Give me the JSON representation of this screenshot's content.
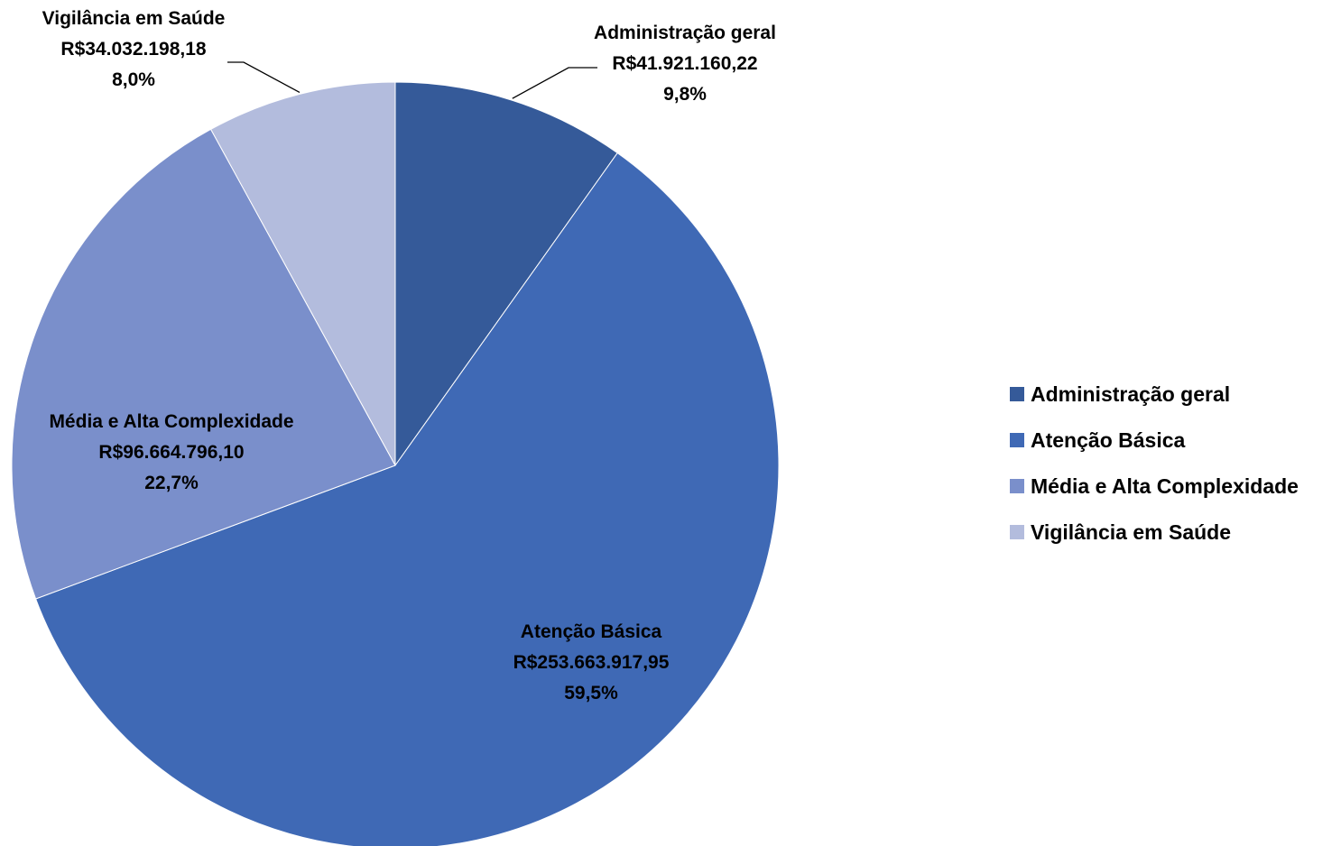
{
  "chart_data": {
    "type": "pie",
    "title": "",
    "legend_position": "right",
    "slices": [
      {
        "name": "Administração geral",
        "value": 41921160.22,
        "value_label": "R$41.921.160,22",
        "percent_label": "9,8%",
        "color": "#355A99"
      },
      {
        "name": "Atenção Básica",
        "value": 253663917.95,
        "value_label": "R$253.663.917,95",
        "percent_label": "59,5%",
        "color": "#3F69B5"
      },
      {
        "name": "Média e Alta Complexidade",
        "value": 96664796.1,
        "value_label": "R$96.664.796,10",
        "percent_label": "22,7%",
        "color": "#7A8FCB"
      },
      {
        "name": "Vigilância em Saúde",
        "value": 34032198.18,
        "value_label": "R$34.032.198,18",
        "percent_label": "8,0%",
        "color": "#B3BCDD"
      }
    ]
  }
}
